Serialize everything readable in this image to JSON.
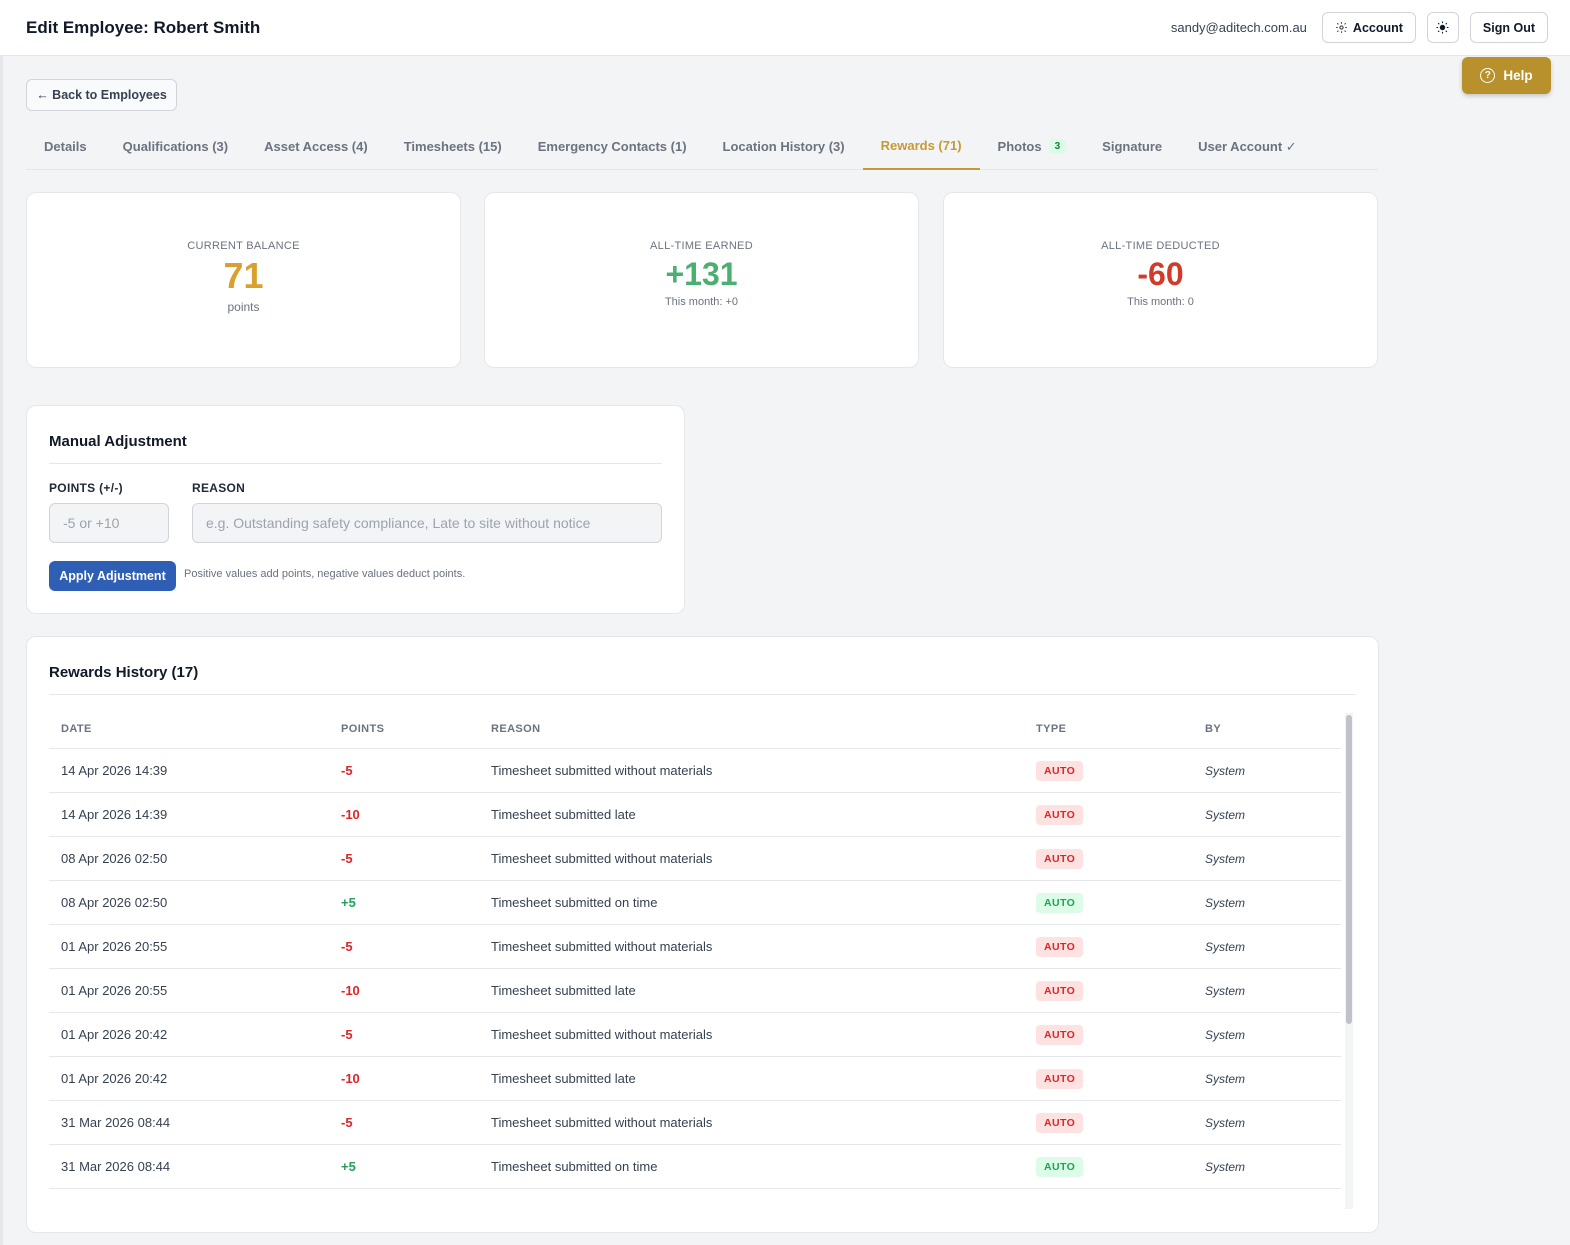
{
  "header": {
    "title": "Edit Employee: Robert Smith",
    "user_email": "sandy@aditech.com.au",
    "account_label": "Account",
    "sign_out_label": "Sign Out"
  },
  "help": {
    "label": "Help"
  },
  "back": {
    "label": "← Back to Employees"
  },
  "tabs": [
    {
      "label": "Details"
    },
    {
      "label": "Qualifications (3)"
    },
    {
      "label": "Asset Access (4)"
    },
    {
      "label": "Timesheets (15)"
    },
    {
      "label": "Emergency Contacts (1)"
    },
    {
      "label": "Location History (3)"
    },
    {
      "label": "Rewards (71)",
      "active": true
    },
    {
      "label": "Photos",
      "badge": "3"
    },
    {
      "label": "Signature"
    },
    {
      "label": "User Account ✓"
    }
  ],
  "stats": {
    "balance": {
      "label": "CURRENT BALANCE",
      "value": "71",
      "sub": "points",
      "color": "#d9a030"
    },
    "earned": {
      "label": "ALL-TIME EARNED",
      "value": "+131",
      "sub": "This month: +0",
      "color": "#4caf72"
    },
    "deducted": {
      "label": "ALL-TIME DEDUCTED",
      "value": "-60",
      "sub": "This month: 0",
      "color": "#d23a2a"
    }
  },
  "adjustment": {
    "title": "Manual Adjustment",
    "points_label": "POINTS (+/-)",
    "points_placeholder": "-5 or +10",
    "reason_label": "REASON",
    "reason_placeholder": "e.g. Outstanding safety compliance, Late to site without notice",
    "apply_label": "Apply Adjustment",
    "hint": "Positive values add points, negative values deduct points."
  },
  "history": {
    "title": "Rewards History (17)",
    "columns": [
      "DATE",
      "POINTS",
      "REASON",
      "TYPE",
      "BY"
    ],
    "rows": [
      {
        "date": "14 Apr 2026 14:39",
        "points": "-5",
        "reason": "Timesheet submitted without materials",
        "type": "AUTO",
        "by": "System"
      },
      {
        "date": "14 Apr 2026 14:39",
        "points": "-10",
        "reason": "Timesheet submitted late",
        "type": "AUTO",
        "by": "System"
      },
      {
        "date": "08 Apr 2026 02:50",
        "points": "-5",
        "reason": "Timesheet submitted without materials",
        "type": "AUTO",
        "by": "System"
      },
      {
        "date": "08 Apr 2026 02:50",
        "points": "+5",
        "reason": "Timesheet submitted on time",
        "type": "AUTO",
        "by": "System"
      },
      {
        "date": "01 Apr 2026 20:55",
        "points": "-5",
        "reason": "Timesheet submitted without materials",
        "type": "AUTO",
        "by": "System"
      },
      {
        "date": "01 Apr 2026 20:55",
        "points": "-10",
        "reason": "Timesheet submitted late",
        "type": "AUTO",
        "by": "System"
      },
      {
        "date": "01 Apr 2026 20:42",
        "points": "-5",
        "reason": "Timesheet submitted without materials",
        "type": "AUTO",
        "by": "System"
      },
      {
        "date": "01 Apr 2026 20:42",
        "points": "-10",
        "reason": "Timesheet submitted late",
        "type": "AUTO",
        "by": "System"
      },
      {
        "date": "31 Mar 2026 08:44",
        "points": "-5",
        "reason": "Timesheet submitted without materials",
        "type": "AUTO",
        "by": "System"
      },
      {
        "date": "31 Mar 2026 08:44",
        "points": "+5",
        "reason": "Timesheet submitted on time",
        "type": "AUTO",
        "by": "System"
      }
    ]
  },
  "colors": {
    "accent_gold": "#c59a34",
    "primary_blue": "#2f5fb4",
    "negative": "#dc2626",
    "positive": "#22a05a"
  }
}
